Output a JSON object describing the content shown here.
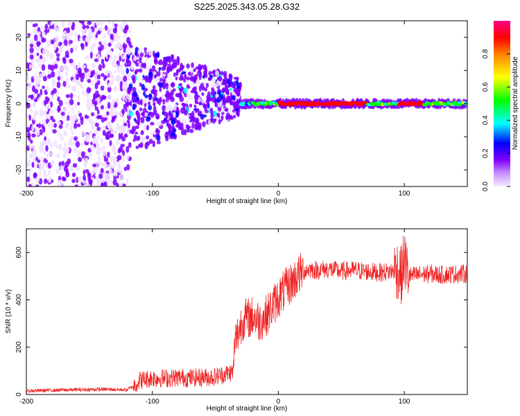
{
  "figure": {
    "title": "S225.2025.343.05.28.G32"
  },
  "chart_data": [
    {
      "type": "heatmap",
      "xlabel": "Height of straight line (km)",
      "ylabel": "Frequency (Hz)",
      "xlim": [
        -200,
        150
      ],
      "ylim": [
        -25,
        25
      ],
      "xticks": [
        -200,
        -100,
        0,
        100
      ],
      "yticks": [
        -20,
        -10,
        0,
        10,
        20
      ],
      "colorbar": {
        "label": "Normalized spectral amplitude",
        "range": [
          0,
          1
        ],
        "ticks": [
          "0.0",
          "0.2",
          "0.4",
          "0.6",
          "0.8"
        ],
        "colormap": [
          "#f0e0ff",
          "#8000ff",
          "#0000ff",
          "#00ffff",
          "#00ff00",
          "#ffff00",
          "#ff0000",
          "#ff00aa"
        ]
      },
      "regions": [
        {
          "x_range": [
            -200,
            -120
          ],
          "freq_spread_hz": 25,
          "amplitude": 0.2,
          "description_value": "broadband"
        },
        {
          "x_range": [
            -120,
            -35
          ],
          "freq_spread_hz": 12,
          "amplitude": 0.3
        },
        {
          "x_range": [
            -35,
            150
          ],
          "freq_center_hz": 0,
          "freq_spread_hz": 1.5,
          "amplitude": 0.9
        }
      ]
    },
    {
      "type": "line",
      "xlabel": "Height of straight line (km)",
      "ylabel": "SNR (10 * v/v)",
      "xlim": [
        -200,
        150
      ],
      "ylim": [
        0,
        700
      ],
      "xticks": [
        -200,
        -100,
        0,
        100
      ],
      "yticks": [
        0,
        200,
        400,
        600
      ],
      "series": [
        {
          "name": "SNR",
          "color": "#ee2222",
          "x": [
            -200,
            -180,
            -160,
            -140,
            -120,
            -115,
            -110,
            -100,
            -90,
            -80,
            -70,
            -60,
            -50,
            -40,
            -36,
            -34,
            -28,
            -25,
            -20,
            -15,
            -10,
            -5,
            0,
            5,
            10,
            15,
            20,
            25,
            30,
            40,
            50,
            60,
            70,
            80,
            90,
            95,
            98,
            100,
            102,
            105,
            110,
            120,
            130,
            140,
            150
          ],
          "y": [
            15,
            18,
            20,
            22,
            20,
            35,
            60,
            70,
            68,
            72,
            70,
            72,
            75,
            90,
            95,
            230,
            320,
            320,
            330,
            310,
            330,
            370,
            410,
            440,
            470,
            500,
            520,
            530,
            525,
            530,
            520,
            525,
            520,
            515,
            520,
            530,
            500,
            580,
            520,
            500,
            505,
            510,
            505,
            510,
            510
          ]
        }
      ]
    }
  ]
}
